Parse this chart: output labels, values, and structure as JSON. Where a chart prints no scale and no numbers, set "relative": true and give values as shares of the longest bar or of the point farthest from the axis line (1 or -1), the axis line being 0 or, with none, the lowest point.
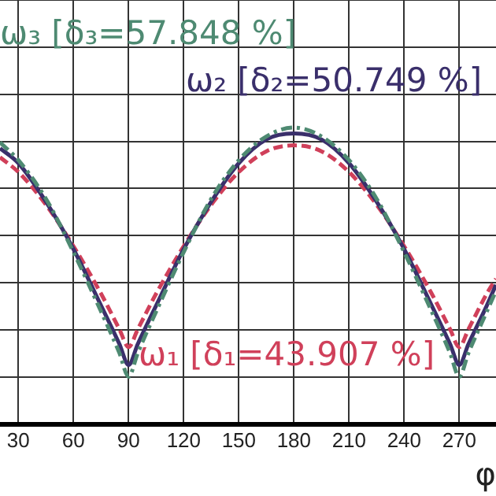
{
  "chart_data": {
    "type": "line",
    "relative": true,
    "xlabel": "φ",
    "xlim": [
      20,
      290
    ],
    "xticks": [
      30,
      60,
      90,
      120,
      150,
      180,
      210,
      240,
      270
    ],
    "grid": true,
    "legend": false,
    "marker": "none",
    "x": [
      20,
      30,
      45,
      60,
      75,
      85,
      90,
      95,
      105,
      120,
      135,
      150,
      165,
      180,
      195,
      210,
      225,
      240,
      255,
      265,
      270,
      275,
      285,
      290
    ],
    "series": [
      {
        "name": "ω₃ [δ₃=57.848 %]",
        "color": "#4e8a72",
        "line_style": "dotted",
        "values": [
          0.95,
          0.89,
          0.76,
          0.58,
          0.38,
          0.24,
          0.16,
          0.24,
          0.38,
          0.58,
          0.76,
          0.89,
          0.97,
          1.0,
          0.97,
          0.89,
          0.76,
          0.58,
          0.38,
          0.24,
          0.16,
          0.24,
          0.38,
          0.45
        ]
      },
      {
        "name": "ω₂ [δ₂=50.749 %]",
        "color": "#3a2f6b",
        "line_style": "solid",
        "values": [
          0.93,
          0.88,
          0.75,
          0.59,
          0.4,
          0.27,
          0.2,
          0.27,
          0.4,
          0.59,
          0.75,
          0.88,
          0.96,
          0.98,
          0.96,
          0.88,
          0.75,
          0.59,
          0.4,
          0.27,
          0.2,
          0.27,
          0.4,
          0.47
        ]
      },
      {
        "name": "ω₁ [δ₁=43.907 %]",
        "color": "#d0405a",
        "line_style": "dashed",
        "values": [
          0.9,
          0.85,
          0.74,
          0.6,
          0.44,
          0.32,
          0.26,
          0.32,
          0.44,
          0.6,
          0.74,
          0.85,
          0.92,
          0.94,
          0.92,
          0.85,
          0.74,
          0.6,
          0.44,
          0.32,
          0.26,
          0.32,
          0.44,
          0.49
        ]
      }
    ]
  }
}
